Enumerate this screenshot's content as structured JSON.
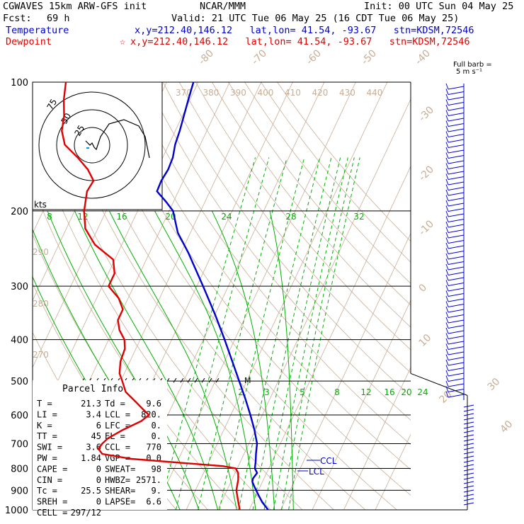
{
  "header": {
    "title": "CGWAVES 15km ARW-GFS init",
    "fcst_label": "Fcst:",
    "fcst_value": "69 h",
    "org": "NCAR/MMM",
    "init": "Init: 00 UTC Sun 04 May 25",
    "valid": "Valid: 21 UTC Tue 06 May 25 (16 CDT Tue 06 May 25)",
    "temperature_label": "Temperature",
    "temperature_info": "x,y=212.40,146.12   lat,lon= 41.54, -93.67   stn=KDSM,72546",
    "dewpoint_label": "Dewpoint",
    "dewpoint_info": "x,y=212.40,146.12   lat,lon= 41.54, -93.67   stn=KDSM,72546",
    "star": "☆"
  },
  "barb_legend": {
    "line1": "Full barb =",
    "line2": "5 m s⁻¹"
  },
  "hodograph": {
    "ring_labels": [
      "75",
      "50",
      "25"
    ],
    "units": "kts"
  },
  "parcel": {
    "title": "Parcel Info",
    "rows": [
      [
        "T   =",
        "21.3",
        "Td =",
        "9.6"
      ],
      [
        "LI  =",
        "3.4",
        "LCL =",
        "820."
      ],
      [
        "K   =",
        "6",
        "LFC =",
        "0."
      ],
      [
        "TT  =",
        "45",
        "EL  =",
        "0."
      ],
      [
        "SWI =",
        "3.6",
        "CCL =",
        "770"
      ],
      [
        "PW  =",
        "1.84",
        "VGP =",
        "0.0"
      ],
      [
        "CAPE =",
        "0",
        "SWEAT=",
        "98"
      ],
      [
        "CIN  =",
        "0",
        "HWBZ=",
        "2571."
      ],
      [
        "Tc   =",
        "25.5",
        "SHEAR=",
        "9."
      ],
      [
        "SREH =",
        "0",
        "LAPSE=",
        "6.6"
      ],
      [
        "CELL =",
        "297/12",
        "",
        ""
      ]
    ]
  },
  "chart_data": {
    "type": "line",
    "title": "Skew-T log-P sounding",
    "ylabel": "Pressure (hPa)",
    "y_log": true,
    "ylim": [
      1000,
      100
    ],
    "pressure_ticks": [
      100,
      200,
      300,
      400,
      500,
      600,
      700,
      800,
      900,
      1000
    ],
    "isotherm_labels": [
      -80,
      -70,
      -60,
      -50,
      -40,
      -30,
      -20,
      -10,
      0,
      10,
      20,
      30,
      40
    ],
    "theta_labels": [
      370,
      380,
      390,
      400,
      410,
      420,
      430,
      440
    ],
    "theta_left_labels": [
      290,
      280,
      270
    ],
    "mixing_ratio_upper": [
      8,
      12,
      16,
      20,
      24,
      28,
      32
    ],
    "mixing_ratio_lower": [
      2,
      3,
      5,
      8,
      12,
      16,
      20,
      24
    ],
    "annotations": [
      "CCL",
      "LCL",
      "M"
    ],
    "series": [
      {
        "name": "Temperature",
        "color": "#0000d0",
        "points": [
          [
            1000,
            26.0
          ],
          [
            960,
            23.0
          ],
          [
            920,
            20.5
          ],
          [
            880,
            18.0
          ],
          [
            860,
            16.8
          ],
          [
            845,
            16.5
          ],
          [
            830,
            16.8
          ],
          [
            820,
            17.0
          ],
          [
            800,
            15.6
          ],
          [
            770,
            14.8
          ],
          [
            740,
            13.8
          ],
          [
            700,
            12.6
          ],
          [
            650,
            9.7
          ],
          [
            600,
            6.2
          ],
          [
            550,
            2.2
          ],
          [
            500,
            -2.4
          ],
          [
            450,
            -7.5
          ],
          [
            400,
            -13.2
          ],
          [
            350,
            -19.9
          ],
          [
            300,
            -28.0
          ],
          [
            250,
            -37.8
          ],
          [
            225,
            -44.0
          ],
          [
            200,
            -48.8
          ],
          [
            190,
            -52.5
          ],
          [
            180,
            -56.8
          ],
          [
            170,
            -57.0
          ],
          [
            160,
            -56.5
          ],
          [
            150,
            -56.8
          ],
          [
            140,
            -58.0
          ],
          [
            130,
            -58.6
          ],
          [
            120,
            -59.5
          ],
          [
            110,
            -60.5
          ],
          [
            100,
            -61.5
          ]
        ]
      },
      {
        "name": "Dewpoint",
        "color": "#e00000",
        "points": [
          [
            1000,
            17.0
          ],
          [
            950,
            15.0
          ],
          [
            900,
            13.0
          ],
          [
            850,
            12.0
          ],
          [
            820,
            11.0
          ],
          [
            800,
            9.5
          ],
          [
            790,
            5.0
          ],
          [
            780,
            -5.0
          ],
          [
            770,
            -15.0
          ],
          [
            760,
            -25.0
          ],
          [
            750,
            -30.0
          ],
          [
            740,
            -35.0
          ],
          [
            720,
            -37.0
          ],
          [
            700,
            -36.5
          ],
          [
            680,
            -35.5
          ],
          [
            650,
            -32.0
          ],
          [
            620,
            -27.5
          ],
          [
            600,
            -26.0
          ],
          [
            580,
            -29.0
          ],
          [
            560,
            -32.0
          ],
          [
            530,
            -36.8
          ],
          [
            500,
            -39.5
          ],
          [
            480,
            -41.5
          ],
          [
            450,
            -43.0
          ],
          [
            420,
            -43.5
          ],
          [
            400,
            -45.0
          ],
          [
            380,
            -48.0
          ],
          [
            360,
            -50.0
          ],
          [
            340,
            -50.0
          ],
          [
            320,
            -53.0
          ],
          [
            300,
            -58.0
          ],
          [
            280,
            -58.0
          ],
          [
            260,
            -60.5
          ],
          [
            240,
            -68.5
          ],
          [
            220,
            -74.0
          ],
          [
            200,
            -77.0
          ],
          [
            180,
            -79.0
          ],
          [
            170,
            -78.5
          ],
          [
            160,
            -82.0
          ],
          [
            150,
            -87.0
          ],
          [
            140,
            -93.0
          ],
          [
            130,
            -96.0
          ],
          [
            120,
            -97.5
          ],
          [
            110,
            -100.0
          ],
          [
            100,
            -102.0
          ]
        ]
      }
    ],
    "hodograph_uv_kts": [
      [
        -3,
        -2
      ],
      [
        -2,
        -1
      ],
      [
        -1,
        0
      ],
      [
        0,
        -1
      ],
      [
        1,
        1
      ],
      [
        2,
        2
      ],
      [
        4,
        -4
      ],
      [
        8,
        -10
      ],
      [
        15,
        -12
      ],
      [
        22,
        -9
      ],
      [
        25,
        -4
      ],
      [
        26,
        1
      ],
      [
        27,
        6
      ]
    ]
  },
  "colors": {
    "temperature": "#0000d0",
    "dewpoint": "#e00000",
    "isotherm": "#c8ae96",
    "mixing_ratio": "#00b000",
    "grid": "#000000"
  }
}
